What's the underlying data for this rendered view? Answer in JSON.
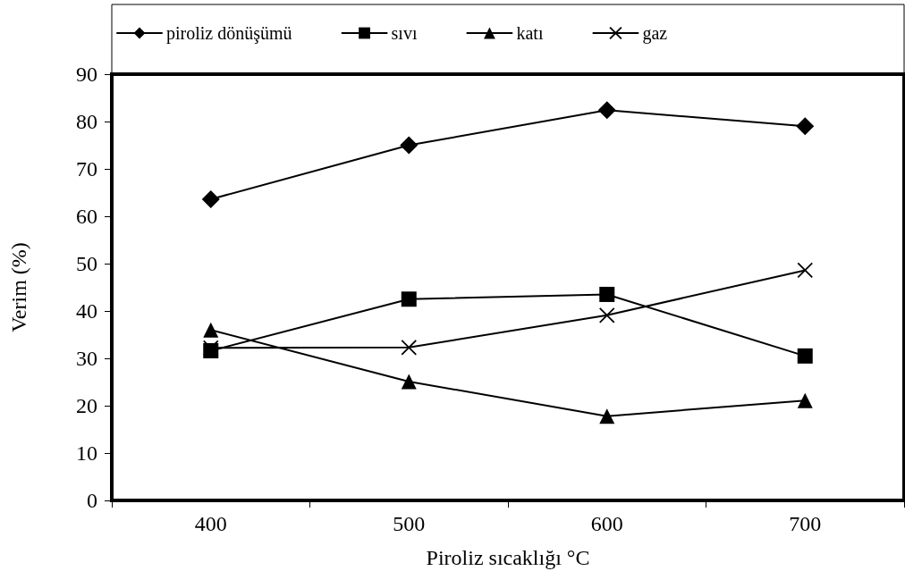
{
  "chart_data": {
    "type": "line",
    "xlabel": "Piroliz sıcaklığı °C",
    "ylabel": "Verim (%)",
    "categories": [
      "400",
      "500",
      "600",
      "700"
    ],
    "ylim": [
      0,
      90
    ],
    "yticks": [
      0,
      10,
      20,
      30,
      40,
      50,
      60,
      70,
      80,
      90
    ],
    "grid": false,
    "legend": "top",
    "line_style": "solid",
    "series": [
      {
        "name": "piroliz dönüşümü",
        "color": "#000000",
        "marker": "diamond",
        "values": [
          63.6,
          75.0,
          82.4,
          79.0
        ]
      },
      {
        "name": "sıvı",
        "color": "#000000",
        "marker": "square",
        "values": [
          31.6,
          42.5,
          43.5,
          30.5
        ]
      },
      {
        "name": "katı",
        "color": "#000000",
        "marker": "triangle",
        "values": [
          36.0,
          25.1,
          17.8,
          21.1
        ]
      },
      {
        "name": "gaz",
        "color": "#000000",
        "marker": "cross",
        "values": [
          32.2,
          32.3,
          39.1,
          48.6
        ]
      }
    ]
  }
}
